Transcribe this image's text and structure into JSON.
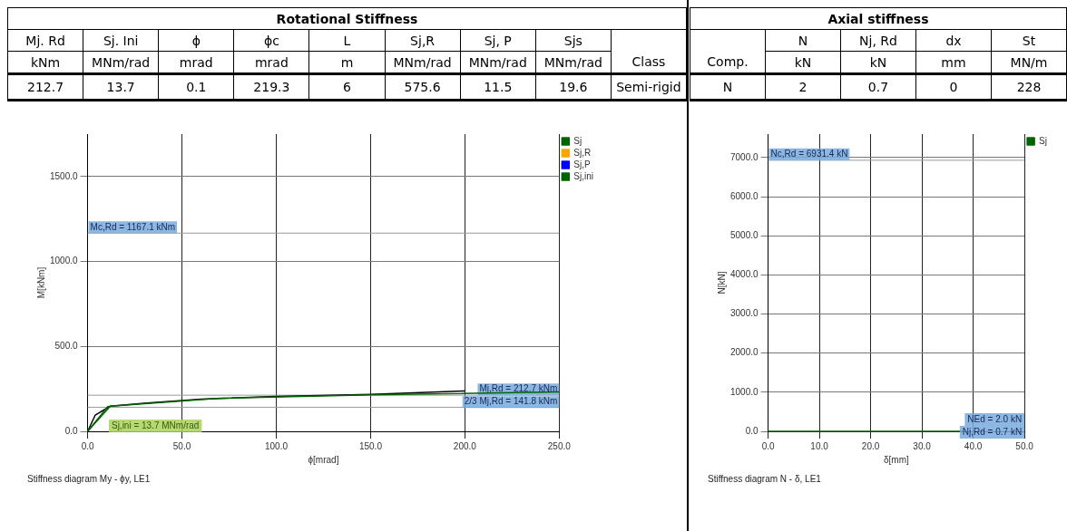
{
  "chart_data": [
    {
      "type": "other",
      "title": "Rotational Stiffness",
      "categories": [
        "Mj. Rd",
        "Sj. Ini",
        "ϕ",
        "ϕc",
        "L",
        "Sj,R",
        "Sj, P",
        "Sjs",
        null
      ],
      "cell_labels": [
        [
          "kNm",
          "MNm/rad",
          "mrad",
          "mrad",
          "m",
          "MNm/rad",
          "MNm/rad",
          "MNm/rad",
          "Class"
        ],
        [
          "212.7",
          "13.7",
          "0.1",
          "219.3",
          "6",
          "575.6",
          "11.5",
          "19.6",
          "Semi-rigid"
        ]
      ]
    },
    {
      "type": "other",
      "title": "Axial stiffness",
      "categories": [
        null,
        "N",
        "Nj, Rd",
        "dx",
        "St"
      ],
      "cell_labels": [
        [
          "Comp.",
          "kN",
          "kN",
          "mm",
          "MN/m"
        ],
        [
          "N",
          "2",
          "0.7",
          "0",
          "228"
        ]
      ]
    },
    {
      "type": "line",
      "xlabel": "ϕ[mrad]",
      "ylabel": "M[kNm]",
      "xlim": [
        0,
        250
      ],
      "ylim": [
        0,
        1750
      ],
      "xticks": [
        {
          "value": 0,
          "label": "0.0"
        },
        {
          "value": 50,
          "label": "50.0"
        },
        {
          "value": 100,
          "label": "100.0"
        },
        {
          "value": 150,
          "label": "150.0"
        },
        {
          "value": 200,
          "label": "200.0"
        },
        {
          "value": 250,
          "label": "250.0"
        }
      ],
      "yticks": [
        {
          "value": 0,
          "label": "0.0"
        },
        {
          "value": 500,
          "label": "500.0"
        },
        {
          "value": 1000,
          "label": "1000.0"
        },
        {
          "value": 1500,
          "label": "1500.0"
        }
      ],
      "grid": true,
      "legend": "top right",
      "marker": "none",
      "series": [
        {
          "name": "Sj",
          "color": "#006400",
          "x": [
            0,
            12,
            70,
            150,
            250
          ],
          "values": [
            0,
            148,
            195,
            215,
            232
          ]
        },
        {
          "name": "Sj,R",
          "color": "#ffa500"
        },
        {
          "name": "Sj,P",
          "color": "#0000ff"
        },
        {
          "name": "Sj,ini",
          "color": "#006400",
          "x": [
            0,
            11
          ],
          "values": [
            0,
            150
          ]
        },
        {
          "color": "#000000",
          "x": [
            0,
            4,
            12,
            30,
            60,
            100,
            150,
            200
          ],
          "values": [
            0,
            95,
            148,
            165,
            190,
            205,
            218,
            238
          ]
        }
      ],
      "ref_lines": [
        {
          "axis": "y",
          "value": 1167.1,
          "label": "Mc,Rd = 1167.1 kNm"
        },
        {
          "axis": "y",
          "value": 212.7,
          "label": "Mj,Rd = 212.7 kNm"
        },
        {
          "axis": "y",
          "value": 141.8,
          "label": "2/3 Mj,Rd = 141.8 kNm"
        }
      ],
      "annotations": [
        "Sj,ini = 13.7 MNm/rad",
        "Stiffness diagram My - ϕy, LE1"
      ]
    },
    {
      "type": "line",
      "xlabel": "δ[mm]",
      "ylabel": "N[kN]",
      "xlim": [
        0,
        50
      ],
      "ylim": [
        0,
        7600
      ],
      "xticks": [
        {
          "value": 0,
          "label": "0.0"
        },
        {
          "value": 10,
          "label": "10.0"
        },
        {
          "value": 20,
          "label": "20.0"
        },
        {
          "value": 30,
          "label": "30.0"
        },
        {
          "value": 40,
          "label": "40.0"
        },
        {
          "value": 50,
          "label": "50.0"
        }
      ],
      "yticks": [
        {
          "value": 0,
          "label": "0.0"
        },
        {
          "value": 1000,
          "label": "1000.0"
        },
        {
          "value": 2000,
          "label": "2000.0"
        },
        {
          "value": 3000,
          "label": "3000.0"
        },
        {
          "value": 4000,
          "label": "4000.0"
        },
        {
          "value": 5000,
          "label": "5000.0"
        },
        {
          "value": 6000,
          "label": "6000.0"
        },
        {
          "value": 7000,
          "label": "7000.0"
        }
      ],
      "grid": true,
      "legend": "top right",
      "marker": "none",
      "series": [
        {
          "name": "Sj",
          "color": "#006400",
          "x": [
            0,
            38
          ],
          "values": [
            0,
            0
          ]
        }
      ],
      "ref_lines": [
        {
          "axis": "y",
          "value": 6931.4,
          "label": "Nc,Rd = 6931.4 kN"
        }
      ],
      "annotations": [
        "NEd = 2.0 kN",
        "Nj,Rd = 0.7 kN",
        "Stiffness diagram N - δ, LE1"
      ]
    }
  ]
}
